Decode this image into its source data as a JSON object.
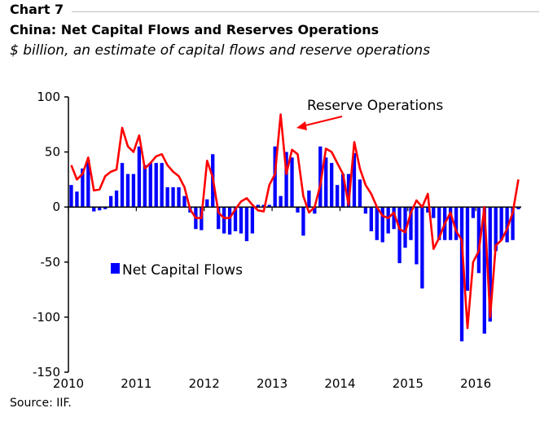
{
  "header": {
    "chart_number": "Chart 7",
    "title": "China: Net Capital Flows and Reserves Operations",
    "subtitle": "$ billion, an estimate of capital flows and reserve operations"
  },
  "footer": {
    "source": "Source: IIF."
  },
  "colors": {
    "bars": "#0000ff",
    "line": "#ff0000",
    "axis": "#000000"
  },
  "chart_data": {
    "type": "bar",
    "ylim": [
      -150,
      100
    ],
    "yticks": [
      100,
      50,
      0,
      -50,
      -100,
      -150
    ],
    "xlim": [
      2010,
      2016.67
    ],
    "xticks": [
      "2010",
      "2011",
      "2012",
      "2013",
      "2014",
      "2015",
      "2016"
    ],
    "grid": false,
    "series": [
      {
        "name": "Net Capital Flows",
        "type": "bar",
        "values": [
          20,
          14,
          35,
          43,
          -4,
          -3,
          -2,
          10,
          15,
          40,
          30,
          30,
          55,
          38,
          40,
          40,
          40,
          18,
          18,
          18,
          10,
          -5,
          -20,
          -21,
          7,
          48,
          -20,
          -24,
          -25,
          -22,
          -24,
          -31,
          -24,
          2,
          2,
          2,
          55,
          10,
          50,
          45,
          -5,
          -26,
          15,
          -6,
          55,
          45,
          40,
          20,
          30,
          30,
          49,
          25,
          -6,
          -22,
          -30,
          -32,
          -24,
          -20,
          -51,
          -37,
          -30,
          -52,
          -74,
          -5,
          -10,
          -30,
          -30,
          -30,
          -30,
          -122,
          -76,
          -10,
          -60,
          -115,
          -104,
          -40,
          -30,
          -32,
          -30,
          -2
        ]
      },
      {
        "name": "Reserve Operations",
        "type": "line",
        "values": [
          38,
          25,
          30,
          45,
          15,
          16,
          28,
          32,
          34,
          72,
          55,
          50,
          65,
          35,
          40,
          46,
          48,
          38,
          32,
          28,
          18,
          -2,
          -10,
          -10,
          42,
          27,
          -5,
          -10,
          -10,
          -2,
          5,
          8,
          2,
          -3,
          -4,
          20,
          30,
          84,
          30,
          52,
          48,
          10,
          -5,
          0,
          20,
          53,
          50,
          40,
          30,
          2,
          59,
          35,
          20,
          12,
          0,
          -8,
          -10,
          -5,
          -20,
          -23,
          -5,
          6,
          0,
          12,
          -38,
          -28,
          -15,
          -5,
          -22,
          -30,
          -110,
          -50,
          -40,
          0,
          -100,
          -35,
          -30,
          -20,
          -5,
          25
        ]
      }
    ],
    "annotations": [
      {
        "text": "Reserve Operations"
      },
      {
        "text": "Net Capital Flows"
      }
    ]
  }
}
